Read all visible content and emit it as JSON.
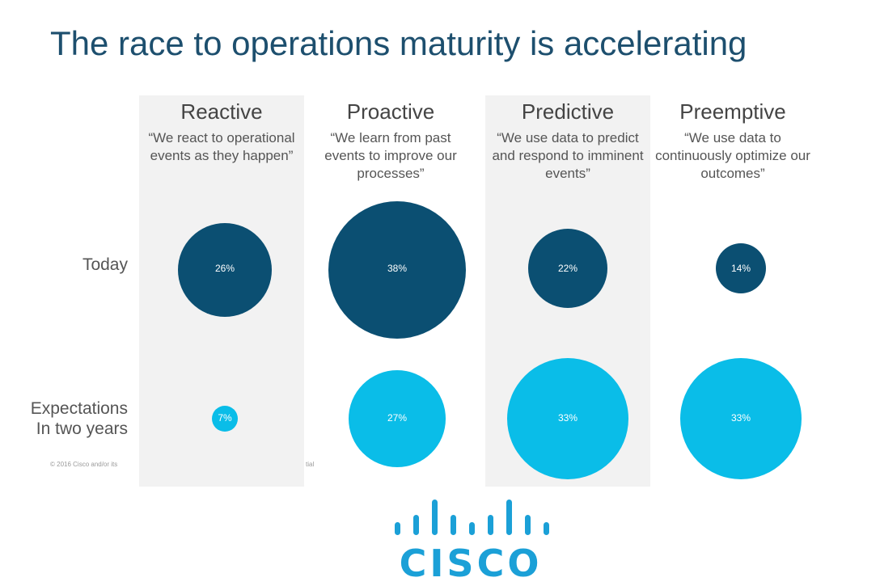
{
  "title": "The race to operations maturity is accelerating",
  "stages": [
    {
      "name": "Reactive",
      "quote": "“We react to operational events as they happen”",
      "today": "26%",
      "future": "7%"
    },
    {
      "name": "Proactive",
      "quote": "“We learn from past events to improve our processes”",
      "today": "38%",
      "future": "27%"
    },
    {
      "name": "Predictive",
      "quote": "“We use data to predict and respond to imminent events”",
      "today": "22%",
      "future": "33%"
    },
    {
      "name": "Preemptive",
      "quote": "“We use data to continuously optimize our outcomes”",
      "today": "14%",
      "future": "33%"
    }
  ],
  "rows": {
    "today": "Today",
    "future_line1": "Expectations",
    "future_line2": "In two years"
  },
  "chart_data": {
    "type": "bubble",
    "categories": [
      "Reactive",
      "Proactive",
      "Predictive",
      "Preemptive"
    ],
    "series": [
      {
        "name": "Today",
        "values": [
          26,
          38,
          22,
          14
        ]
      },
      {
        "name": "Expectations In two years",
        "values": [
          7,
          27,
          33,
          33
        ]
      }
    ]
  },
  "colors": {
    "today": "#0b4f72",
    "future": "#0abde8",
    "column_shade": "#f2f2f2",
    "title": "#1d4f6e",
    "logo": "#1ba0d7"
  },
  "copyright": "© 2016 Cisco and/or its",
  "copyright_tail": "tial",
  "logo_text": "CISCO"
}
